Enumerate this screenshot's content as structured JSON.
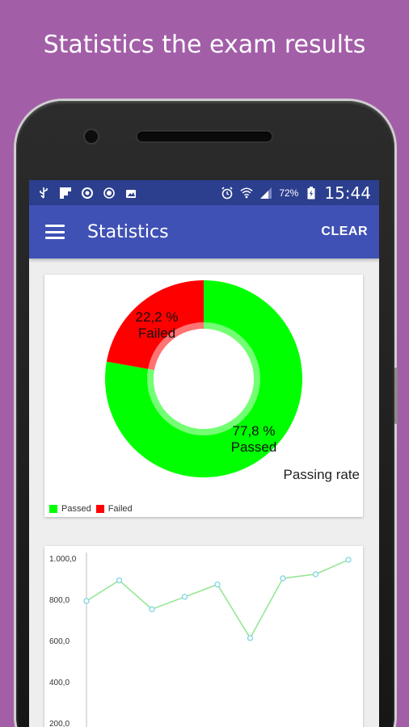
{
  "headline": "Statistics the exam results",
  "statusbar": {
    "battery_percent": "72%",
    "time": "15:44"
  },
  "appbar": {
    "title": "Statistics",
    "clear_label": "CLEAR"
  },
  "pie_chart": {
    "description": "Passing rate",
    "slices": [
      {
        "label": "Passed",
        "percent_text": "77,8 %",
        "value": 77.8,
        "color": "#00ff00"
      },
      {
        "label": "Failed",
        "percent_text": "22,2 %",
        "value": 22.2,
        "color": "#ff0000"
      }
    ],
    "legend": [
      "Passed",
      "Failed"
    ]
  },
  "chart_data": {
    "type": "line",
    "x": [
      1,
      2,
      3,
      4,
      5,
      6,
      7,
      8,
      9
    ],
    "series": [
      {
        "values": [
          800,
          900,
          760,
          820,
          880,
          620,
          910,
          930,
          1000
        ]
      }
    ],
    "yticks": [
      "1.000,0",
      "800,0",
      "600,0",
      "400,0",
      "200,0"
    ],
    "ylim": [
      200,
      1000
    ],
    "line_color": "#8ee68e",
    "marker_color": "#7fd4e6"
  }
}
